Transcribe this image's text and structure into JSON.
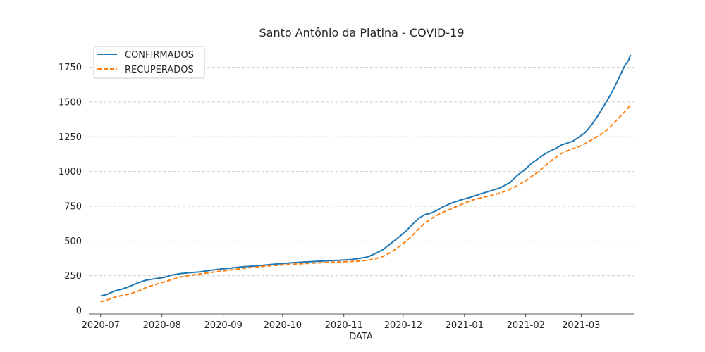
{
  "chart_data": {
    "type": "line",
    "title": "Santo Antônio da Platina - COVID-19",
    "xlabel": "DATA",
    "ylabel": "",
    "x_type": "date",
    "xlim": [
      "2020-06-25",
      "2021-03-28"
    ],
    "ylim": [
      -25,
      1920
    ],
    "x_ticks": [
      "2020-07-01",
      "2020-08-01",
      "2020-09-01",
      "2020-10-01",
      "2020-11-01",
      "2020-12-01",
      "2021-01-01",
      "2021-02-01",
      "2021-03-01"
    ],
    "x_tick_labels": [
      "2020-07",
      "2020-08",
      "2020-09",
      "2020-10",
      "2020-11",
      "2020-12",
      "2021-01",
      "2021-02",
      "2021-03"
    ],
    "y_ticks": [
      0,
      250,
      500,
      750,
      1000,
      1250,
      1500,
      1750
    ],
    "grid": "y-dashed",
    "legend": "top-left",
    "series": [
      {
        "name": "CONFIRMADOS",
        "color": "#1f77b4",
        "style": "solid",
        "points": [
          [
            "2020-07-01",
            105
          ],
          [
            "2020-07-04",
            115
          ],
          [
            "2020-07-08",
            140
          ],
          [
            "2020-07-12",
            155
          ],
          [
            "2020-07-16",
            175
          ],
          [
            "2020-07-20",
            200
          ],
          [
            "2020-07-24",
            218
          ],
          [
            "2020-07-29",
            230
          ],
          [
            "2020-08-02",
            238
          ],
          [
            "2020-08-06",
            255
          ],
          [
            "2020-08-10",
            265
          ],
          [
            "2020-08-15",
            272
          ],
          [
            "2020-08-20",
            278
          ],
          [
            "2020-08-25",
            288
          ],
          [
            "2020-08-30",
            297
          ],
          [
            "2020-09-05",
            305
          ],
          [
            "2020-09-11",
            315
          ],
          [
            "2020-09-17",
            320
          ],
          [
            "2020-09-23",
            328
          ],
          [
            "2020-09-30",
            337
          ],
          [
            "2020-10-06",
            343
          ],
          [
            "2020-10-13",
            350
          ],
          [
            "2020-10-20",
            355
          ],
          [
            "2020-10-27",
            360
          ],
          [
            "2020-11-01",
            363
          ],
          [
            "2020-11-05",
            367
          ],
          [
            "2020-11-09",
            375
          ],
          [
            "2020-11-13",
            385
          ],
          [
            "2020-11-17",
            410
          ],
          [
            "2020-11-21",
            440
          ],
          [
            "2020-11-25",
            485
          ],
          [
            "2020-11-29",
            530
          ],
          [
            "2020-12-03",
            580
          ],
          [
            "2020-12-06",
            625
          ],
          [
            "2020-12-09",
            665
          ],
          [
            "2020-12-12",
            690
          ],
          [
            "2020-12-15",
            700
          ],
          [
            "2020-12-18",
            720
          ],
          [
            "2020-12-21",
            745
          ],
          [
            "2020-12-25",
            770
          ],
          [
            "2020-12-30",
            795
          ],
          [
            "2021-01-04",
            815
          ],
          [
            "2021-01-09",
            838
          ],
          [
            "2021-01-14",
            860
          ],
          [
            "2021-01-19",
            882
          ],
          [
            "2021-01-24",
            920
          ],
          [
            "2021-01-28",
            975
          ],
          [
            "2021-02-01",
            1020
          ],
          [
            "2021-02-04",
            1060
          ],
          [
            "2021-02-07",
            1090
          ],
          [
            "2021-02-10",
            1120
          ],
          [
            "2021-02-13",
            1145
          ],
          [
            "2021-02-16",
            1165
          ],
          [
            "2021-02-19",
            1190
          ],
          [
            "2021-02-22",
            1205
          ],
          [
            "2021-02-25",
            1220
          ],
          [
            "2021-02-28",
            1250
          ],
          [
            "2021-03-03",
            1280
          ],
          [
            "2021-03-06",
            1330
          ],
          [
            "2021-03-09",
            1390
          ],
          [
            "2021-03-12",
            1460
          ],
          [
            "2021-03-15",
            1530
          ],
          [
            "2021-03-18",
            1610
          ],
          [
            "2021-03-21",
            1700
          ],
          [
            "2021-03-23",
            1760
          ],
          [
            "2021-03-25",
            1800
          ],
          [
            "2021-03-26",
            1840
          ]
        ]
      },
      {
        "name": "RECUPERADOS",
        "color": "#ff7f0e",
        "style": "dashed",
        "points": [
          [
            "2020-07-01",
            62
          ],
          [
            "2020-07-04",
            75
          ],
          [
            "2020-07-08",
            95
          ],
          [
            "2020-07-12",
            108
          ],
          [
            "2020-07-16",
            120
          ],
          [
            "2020-07-20",
            140
          ],
          [
            "2020-07-24",
            165
          ],
          [
            "2020-07-29",
            188
          ],
          [
            "2020-08-02",
            205
          ],
          [
            "2020-08-06",
            222
          ],
          [
            "2020-08-10",
            240
          ],
          [
            "2020-08-15",
            253
          ],
          [
            "2020-08-20",
            262
          ],
          [
            "2020-08-25",
            272
          ],
          [
            "2020-08-30",
            282
          ],
          [
            "2020-09-05",
            292
          ],
          [
            "2020-09-11",
            303
          ],
          [
            "2020-09-17",
            312
          ],
          [
            "2020-09-23",
            320
          ],
          [
            "2020-09-30",
            327
          ],
          [
            "2020-10-06",
            333
          ],
          [
            "2020-10-13",
            338
          ],
          [
            "2020-10-20",
            343
          ],
          [
            "2020-10-27",
            348
          ],
          [
            "2020-11-01",
            351
          ],
          [
            "2020-11-05",
            353
          ],
          [
            "2020-11-09",
            356
          ],
          [
            "2020-11-13",
            362
          ],
          [
            "2020-11-17",
            372
          ],
          [
            "2020-11-21",
            390
          ],
          [
            "2020-11-25",
            420
          ],
          [
            "2020-11-29",
            460
          ],
          [
            "2020-12-03",
            505
          ],
          [
            "2020-12-06",
            545
          ],
          [
            "2020-12-09",
            590
          ],
          [
            "2020-12-12",
            630
          ],
          [
            "2020-12-15",
            660
          ],
          [
            "2020-12-18",
            685
          ],
          [
            "2020-12-21",
            705
          ],
          [
            "2020-12-25",
            730
          ],
          [
            "2020-12-30",
            760
          ],
          [
            "2021-01-04",
            790
          ],
          [
            "2021-01-09",
            810
          ],
          [
            "2021-01-14",
            825
          ],
          [
            "2021-01-19",
            845
          ],
          [
            "2021-01-24",
            872
          ],
          [
            "2021-01-28",
            900
          ],
          [
            "2021-02-01",
            935
          ],
          [
            "2021-02-04",
            965
          ],
          [
            "2021-02-07",
            995
          ],
          [
            "2021-02-10",
            1030
          ],
          [
            "2021-02-13",
            1070
          ],
          [
            "2021-02-16",
            1100
          ],
          [
            "2021-02-19",
            1130
          ],
          [
            "2021-02-22",
            1150
          ],
          [
            "2021-02-25",
            1165
          ],
          [
            "2021-02-28",
            1180
          ],
          [
            "2021-03-03",
            1200
          ],
          [
            "2021-03-06",
            1225
          ],
          [
            "2021-03-09",
            1250
          ],
          [
            "2021-03-12",
            1275
          ],
          [
            "2021-03-15",
            1310
          ],
          [
            "2021-03-18",
            1355
          ],
          [
            "2021-03-21",
            1400
          ],
          [
            "2021-03-23",
            1430
          ],
          [
            "2021-03-25",
            1460
          ],
          [
            "2021-03-26",
            1490
          ]
        ]
      }
    ]
  }
}
